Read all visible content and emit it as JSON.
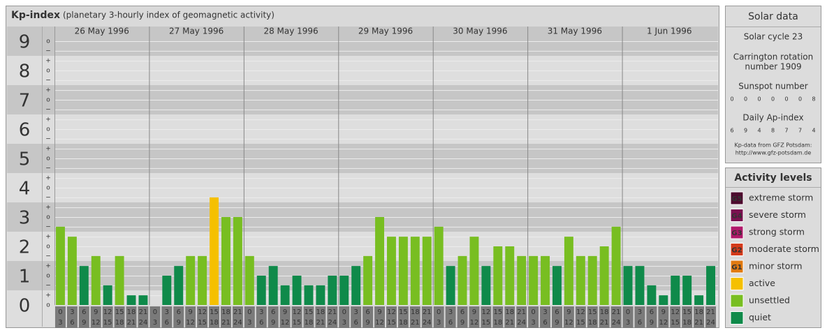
{
  "chart_data": {
    "type": "bar",
    "title": "Kp-index",
    "subtitle": "(planetary 3-hourly index of geomagnetic activity)",
    "ylim": [
      0,
      9.5
    ],
    "yticks": [
      0,
      1,
      2,
      3,
      4,
      5,
      6,
      7,
      8,
      9
    ],
    "minor_ticks": [
      {
        "value": 0,
        "label": "o"
      },
      {
        "value": 0.33,
        "label": "+"
      },
      {
        "value": 0.67,
        "label": "−"
      },
      {
        "value": 1,
        "label": "o"
      },
      {
        "value": 1.33,
        "label": "+"
      },
      {
        "value": 1.67,
        "label": "−"
      },
      {
        "value": 2,
        "label": "o"
      },
      {
        "value": 2.33,
        "label": "+"
      },
      {
        "value": 2.67,
        "label": "−"
      },
      {
        "value": 3,
        "label": "o"
      },
      {
        "value": 3.33,
        "label": "+"
      },
      {
        "value": 3.67,
        "label": "−"
      },
      {
        "value": 4,
        "label": "o"
      },
      {
        "value": 4.33,
        "label": "+"
      },
      {
        "value": 4.67,
        "label": "−"
      },
      {
        "value": 5,
        "label": "o"
      },
      {
        "value": 5.33,
        "label": "+"
      },
      {
        "value": 5.67,
        "label": "−"
      },
      {
        "value": 6,
        "label": "o"
      },
      {
        "value": 6.33,
        "label": "+"
      },
      {
        "value": 6.67,
        "label": "−"
      },
      {
        "value": 7,
        "label": "o"
      },
      {
        "value": 7.33,
        "label": "+"
      },
      {
        "value": 7.67,
        "label": "−"
      },
      {
        "value": 8,
        "label": "o"
      },
      {
        "value": 8.33,
        "label": "+"
      },
      {
        "value": 8.67,
        "label": "−"
      },
      {
        "value": 9,
        "label": "o"
      }
    ],
    "hours": [
      0,
      3,
      6,
      9,
      12,
      15,
      18,
      21,
      24
    ],
    "days": [
      {
        "date": "26 May 1996",
        "values": [
          2.67,
          2.33,
          1.33,
          1.67,
          0.67,
          1.67,
          0.33,
          0.33
        ],
        "colors": [
          "#78be21",
          "#78be21",
          "#0f8a4a",
          "#78be21",
          "#0f8a4a",
          "#78be21",
          "#0f8a4a",
          "#0f8a4a"
        ]
      },
      {
        "date": "27 May 1996",
        "values": [
          0,
          1,
          1.33,
          1.67,
          1.67,
          3.67,
          3,
          3
        ],
        "colors": [
          "#0f8a4a",
          "#0f8a4a",
          "#0f8a4a",
          "#78be21",
          "#78be21",
          "#f5c000",
          "#78be21",
          "#78be21"
        ]
      },
      {
        "date": "28 May 1996",
        "values": [
          1.67,
          1,
          1.33,
          0.67,
          1,
          0.67,
          0.67,
          1
        ],
        "colors": [
          "#78be21",
          "#0f8a4a",
          "#0f8a4a",
          "#0f8a4a",
          "#0f8a4a",
          "#0f8a4a",
          "#0f8a4a",
          "#0f8a4a"
        ]
      },
      {
        "date": "29 May 1996",
        "values": [
          1,
          1.33,
          1.67,
          3,
          2.33,
          2.33,
          2.33,
          2.33
        ],
        "colors": [
          "#0f8a4a",
          "#0f8a4a",
          "#78be21",
          "#78be21",
          "#78be21",
          "#78be21",
          "#78be21",
          "#78be21"
        ]
      },
      {
        "date": "30 May 1996",
        "values": [
          2.67,
          1.33,
          1.67,
          2.33,
          1.33,
          2,
          2,
          1.67
        ],
        "colors": [
          "#78be21",
          "#0f8a4a",
          "#78be21",
          "#78be21",
          "#0f8a4a",
          "#78be21",
          "#78be21",
          "#78be21"
        ]
      },
      {
        "date": "31 May 1996",
        "values": [
          1.67,
          1.67,
          1.33,
          2.33,
          1.67,
          1.67,
          2,
          2.67
        ],
        "colors": [
          "#78be21",
          "#78be21",
          "#0f8a4a",
          "#78be21",
          "#78be21",
          "#78be21",
          "#78be21",
          "#78be21"
        ]
      },
      {
        "date": "1 Jun 1996",
        "values": [
          1.33,
          1.33,
          0.67,
          0.33,
          1,
          1,
          0.33,
          1.33
        ],
        "colors": [
          "#0f8a4a",
          "#0f8a4a",
          "#0f8a4a",
          "#0f8a4a",
          "#0f8a4a",
          "#0f8a4a",
          "#0f8a4a",
          "#0f8a4a"
        ]
      }
    ]
  },
  "solar_data": {
    "title": "Solar data",
    "cycle": "Solar cycle 23",
    "carrington": [
      "Carrington rotation",
      "number 1909"
    ],
    "sunspot_label": "Sunspot number",
    "sunspots": [
      0,
      0,
      0,
      0,
      0,
      0,
      8
    ],
    "ap_label": "Daily Ap-index",
    "ap": [
      6,
      9,
      4,
      8,
      7,
      7,
      4
    ],
    "source": [
      "Kp-data from GFZ Potsdam:",
      "http://www.gfz-potsdam.de"
    ]
  },
  "activity_levels": {
    "title": "Activity levels",
    "levels": [
      {
        "code": "G5",
        "label": "extreme storm",
        "color": "#4d0a2e"
      },
      {
        "code": "G4",
        "label": "severe storm",
        "color": "#7b1050"
      },
      {
        "code": "G3",
        "label": "strong storm",
        "color": "#b0186a"
      },
      {
        "code": "G2",
        "label": "moderate storm",
        "color": "#d43a1a"
      },
      {
        "code": "G1",
        "label": "minor storm",
        "color": "#e07a10"
      },
      {
        "label": "active",
        "color": "#f5c000"
      },
      {
        "label": "unsettled",
        "color": "#78be21"
      },
      {
        "label": "quiet",
        "color": "#0f8a4a"
      }
    ]
  }
}
